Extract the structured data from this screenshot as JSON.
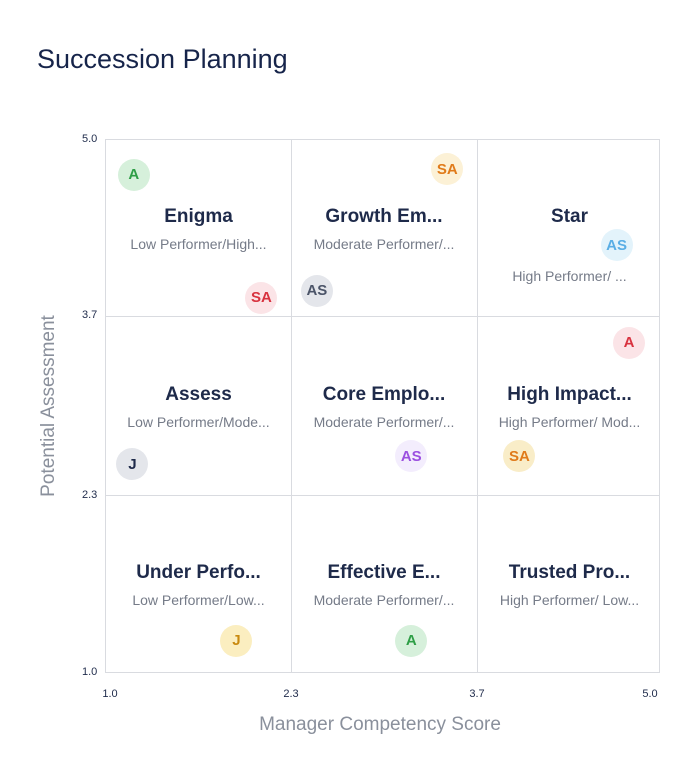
{
  "chart_data": {
    "type": "scatter",
    "title": "Succession Planning",
    "xlabel": "Manager Competency Score",
    "ylabel": "Potential Assessment",
    "xlim": [
      1.0,
      5.0
    ],
    "ylim": [
      1.0,
      5.0
    ],
    "xticks": [
      "1.0",
      "2.3",
      "3.7",
      "5.0"
    ],
    "yticks": [
      "5.0",
      "3.7",
      "2.3",
      "1.0"
    ],
    "grid": true,
    "quadrants": [
      {
        "title": "Enigma",
        "subtitle": "Low Performer/High..."
      },
      {
        "title": "Growth Em...",
        "subtitle": "Moderate Performer/..."
      },
      {
        "title": "Star",
        "subtitle": "High Performer/ ..."
      },
      {
        "title": "Assess",
        "subtitle": "Low Performer/Mode..."
      },
      {
        "title": "Core Emplo...",
        "subtitle": "Moderate Performer/..."
      },
      {
        "title": "High Impact...",
        "subtitle": "High Performer/ Mod..."
      },
      {
        "title": "Under Perfo...",
        "subtitle": "Low Performer/Low..."
      },
      {
        "title": "Effective E...",
        "subtitle": "Moderate Performer/..."
      },
      {
        "title": "Trusted Pro...",
        "subtitle": "High Performer/ Low..."
      }
    ],
    "points": [
      {
        "label": "A",
        "x": 1.2,
        "y": 4.74,
        "bg": "#d6f0db",
        "fg": "#2e9e46"
      },
      {
        "label": "SA",
        "x": 3.46,
        "y": 4.78,
        "bg": "#fcf1d6",
        "fg": "#e07b1a"
      },
      {
        "label": "AS",
        "x": 4.68,
        "y": 4.21,
        "bg": "#e3f3fb",
        "fg": "#5aaee5"
      },
      {
        "label": "SA",
        "x": 2.12,
        "y": 3.82,
        "bg": "#fbe4e7",
        "fg": "#d8323f"
      },
      {
        "label": "AS",
        "x": 2.52,
        "y": 3.87,
        "bg": "#e4e6eb",
        "fg": "#4b5468"
      },
      {
        "label": "A",
        "x": 4.77,
        "y": 3.48,
        "bg": "#fbe4e7",
        "fg": "#d8323f"
      },
      {
        "label": "J",
        "x": 1.19,
        "y": 2.57,
        "bg": "#e4e6eb",
        "fg": "#1e2a4a"
      },
      {
        "label": "AS",
        "x": 3.2,
        "y": 2.63,
        "bg": "#f3edfd",
        "fg": "#9b4fe0"
      },
      {
        "label": "SA",
        "x": 3.98,
        "y": 2.63,
        "bg": "#f9edc8",
        "fg": "#e07b1a"
      },
      {
        "label": "J",
        "x": 1.94,
        "y": 1.25,
        "bg": "#fbeec0",
        "fg": "#c98a10"
      },
      {
        "label": "A",
        "x": 3.2,
        "y": 1.25,
        "bg": "#d6f0db",
        "fg": "#2e9e46"
      }
    ]
  }
}
